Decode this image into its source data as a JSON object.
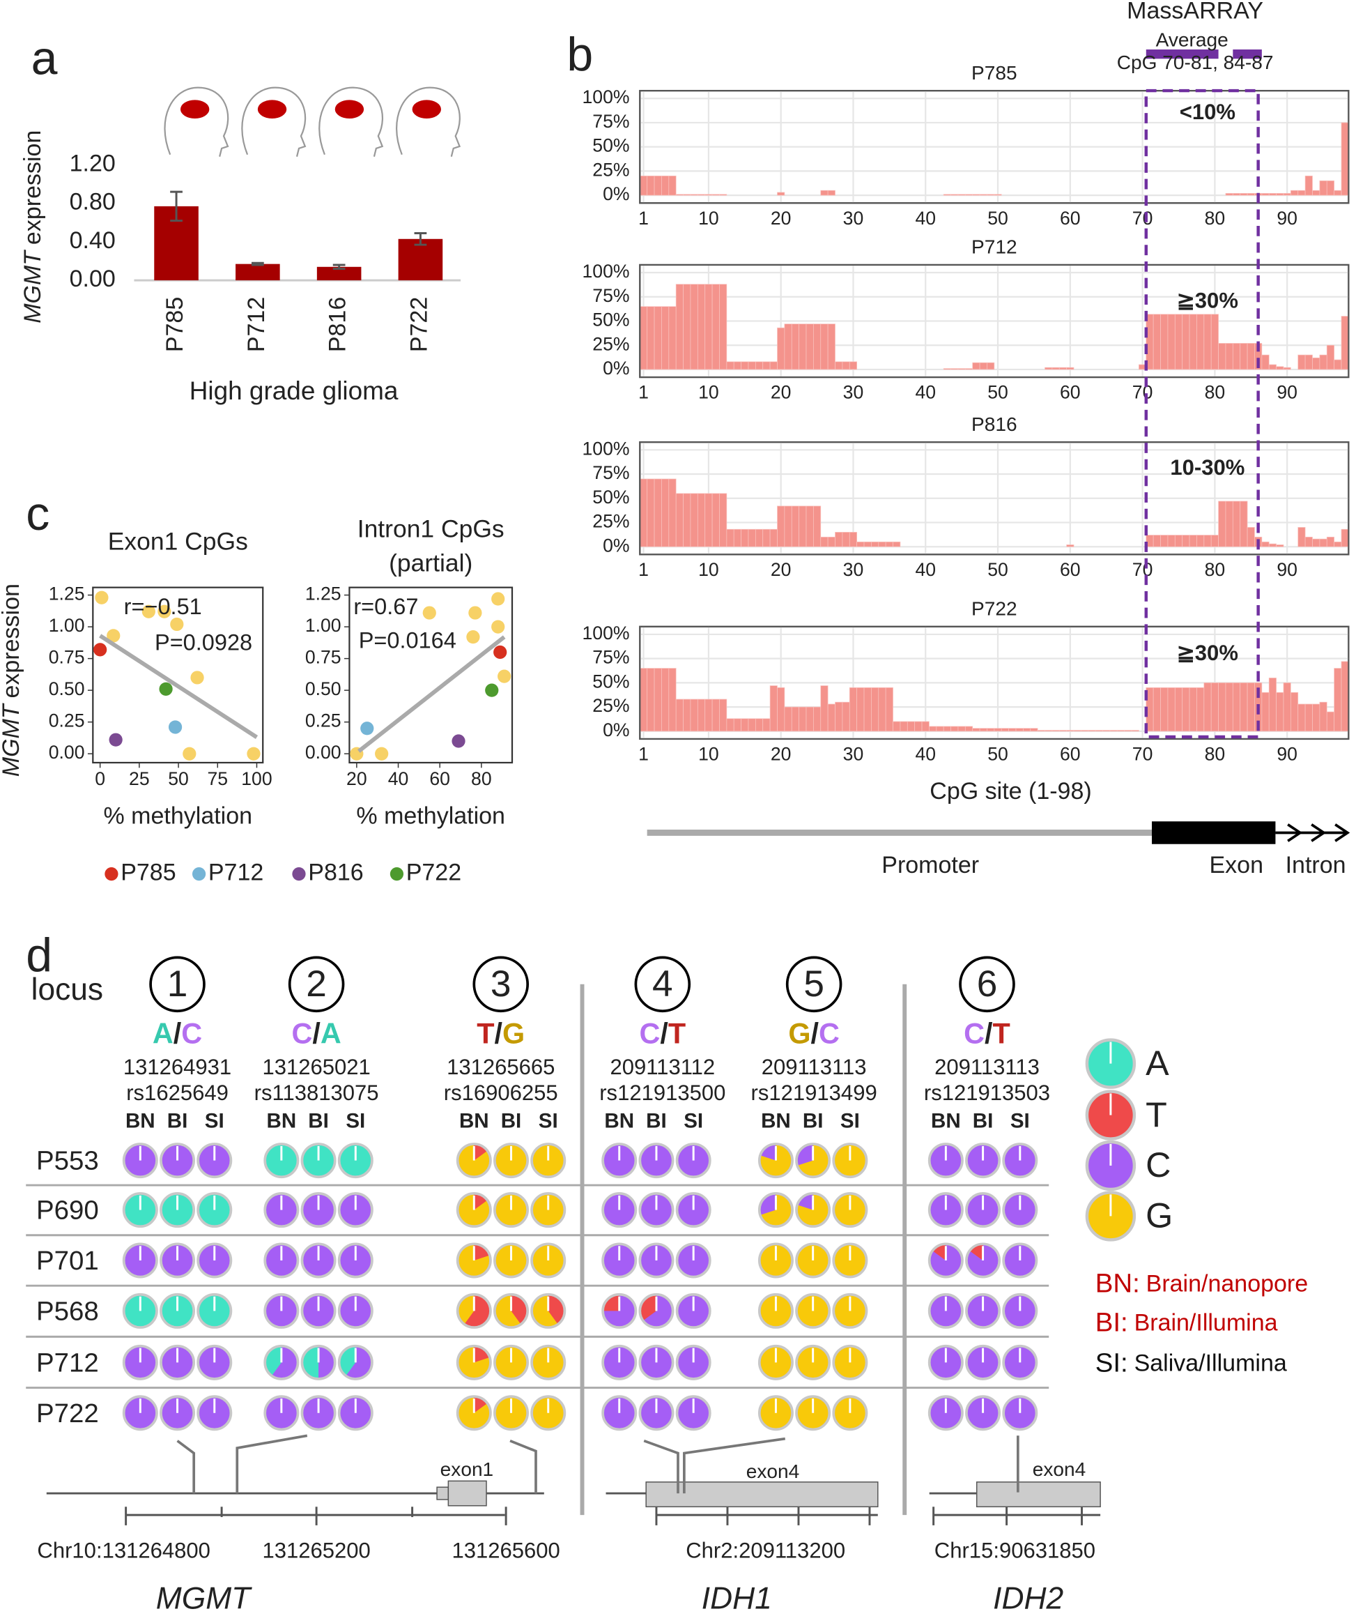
{
  "panel_labels": [
    "a",
    "b",
    "c",
    "d"
  ],
  "chart_data": [
    {
      "type": "bar",
      "ylabel_italic": "MGMT",
      "ylabel": "expression",
      "xlabel": "High grade glioma",
      "categories": [
        "P785",
        "P712",
        "P816",
        "P722"
      ],
      "values": [
        0.77,
        0.17,
        0.14,
        0.43
      ],
      "errors": [
        0.15,
        0.01,
        0.02,
        0.06
      ],
      "color": "#a50000",
      "ylim": [
        0,
        1.2
      ],
      "yticks": [
        {
          "value": 0,
          "label": "0.00"
        },
        {
          "value": 0.4,
          "label": "0.40"
        },
        {
          "value": 0.8,
          "label": "0.80"
        },
        {
          "value": 1.2,
          "label": "1.20"
        }
      ]
    },
    {
      "type": "facet_bar",
      "xlabel": "CpG site (1-98)",
      "color": "#f4938c",
      "x": [
        1,
        2,
        3,
        4,
        5,
        6,
        7,
        8,
        9,
        10,
        11,
        12,
        13,
        14,
        15,
        16,
        17,
        18,
        19,
        20,
        21,
        22,
        23,
        24,
        25,
        26,
        27,
        28,
        29,
        30,
        31,
        32,
        33,
        34,
        35,
        36,
        37,
        38,
        39,
        40,
        41,
        42,
        43,
        44,
        45,
        46,
        47,
        48,
        49,
        50,
        51,
        52,
        53,
        54,
        55,
        56,
        57,
        58,
        59,
        60,
        61,
        62,
        63,
        64,
        65,
        66,
        67,
        68,
        69,
        70,
        71,
        72,
        73,
        74,
        75,
        76,
        77,
        78,
        79,
        80,
        81,
        82,
        83,
        84,
        85,
        86,
        87,
        88,
        89,
        90,
        91,
        92,
        93,
        94,
        95,
        96,
        97,
        98
      ],
      "xlim": [
        0.5,
        98.5
      ],
      "xticks": [
        1,
        10,
        20,
        30,
        40,
        50,
        60,
        70,
        80,
        90
      ],
      "ylim": [
        -8,
        108
      ],
      "yticks": [
        {
          "value": 0,
          "label": "0%"
        },
        {
          "value": 25,
          "label": "25%"
        },
        {
          "value": 50,
          "label": "50%"
        },
        {
          "value": 75,
          "label": "75%"
        },
        {
          "value": 100,
          "label": "100%"
        }
      ],
      "grid": true,
      "series": [
        {
          "name": "P785",
          "annotation": "<10%",
          "values": [
            20,
            20,
            20,
            20,
            20,
            1,
            1,
            1,
            1,
            1,
            1,
            1,
            0,
            0,
            0,
            0,
            0,
            0,
            0,
            3,
            0,
            0,
            0,
            0,
            0,
            5,
            5,
            0,
            0,
            0,
            0,
            0,
            0,
            0,
            0,
            0,
            0,
            0,
            0,
            0,
            0,
            0,
            1,
            1,
            1,
            1,
            1,
            1,
            1,
            1,
            0,
            0,
            0,
            0,
            0,
            0,
            0,
            0,
            0,
            0,
            0,
            0,
            0,
            0,
            0,
            0,
            0,
            0,
            0,
            0,
            0,
            0,
            0,
            0,
            0,
            0,
            0,
            0,
            0,
            0,
            0,
            2,
            2,
            2,
            2,
            2,
            2,
            2,
            2,
            2,
            5,
            5,
            20,
            5,
            15,
            15,
            5,
            75
          ]
        },
        {
          "name": "P712",
          "annotation": "≧30%",
          "values": [
            65,
            65,
            65,
            65,
            65,
            88,
            88,
            88,
            88,
            88,
            88,
            88,
            8,
            8,
            8,
            8,
            8,
            8,
            8,
            43,
            47,
            47,
            47,
            47,
            47,
            47,
            47,
            8,
            8,
            8,
            0,
            0,
            0,
            0,
            0,
            0,
            0,
            0,
            0,
            0,
            0,
            0,
            1,
            1,
            1,
            1,
            7,
            7,
            7,
            0,
            0,
            0,
            0,
            0,
            0,
            0,
            2,
            2,
            2,
            2,
            0,
            0,
            0,
            0,
            0,
            0,
            0,
            0,
            0,
            5,
            57,
            57,
            57,
            57,
            57,
            57,
            57,
            57,
            57,
            57,
            27,
            27,
            27,
            27,
            27,
            27,
            15,
            5,
            3,
            2,
            0,
            15,
            15,
            12,
            15,
            25,
            10,
            55
          ]
        },
        {
          "name": "P816",
          "annotation": "10-30%",
          "values": [
            70,
            70,
            70,
            70,
            70,
            55,
            55,
            55,
            55,
            55,
            55,
            55,
            18,
            18,
            18,
            18,
            18,
            18,
            18,
            42,
            42,
            42,
            42,
            42,
            42,
            10,
            10,
            15,
            15,
            15,
            5,
            5,
            5,
            5,
            5,
            5,
            0,
            0,
            0,
            0,
            0,
            0,
            0,
            0,
            0,
            0,
            0,
            0,
            0,
            0,
            0,
            0,
            0,
            0,
            0,
            0,
            0,
            0,
            0,
            2,
            0,
            0,
            0,
            0,
            0,
            0,
            0,
            0,
            0,
            0,
            12,
            12,
            12,
            12,
            12,
            12,
            12,
            12,
            12,
            12,
            47,
            47,
            47,
            47,
            20,
            10,
            5,
            3,
            2,
            0,
            0,
            20,
            10,
            8,
            8,
            10,
            5,
            18
          ]
        },
        {
          "name": "P722",
          "annotation": "≧30%",
          "values": [
            65,
            65,
            65,
            65,
            65,
            33,
            33,
            33,
            33,
            33,
            33,
            33,
            13,
            13,
            13,
            13,
            13,
            13,
            47,
            45,
            25,
            25,
            25,
            25,
            25,
            47,
            28,
            30,
            30,
            45,
            45,
            45,
            45,
            45,
            45,
            10,
            10,
            10,
            10,
            10,
            5,
            5,
            5,
            5,
            5,
            5,
            3,
            3,
            3,
            3,
            3,
            3,
            3,
            3,
            3,
            1,
            1,
            1,
            1,
            1,
            1,
            1,
            1,
            1,
            1,
            1,
            1,
            1,
            1,
            0,
            45,
            45,
            45,
            45,
            45,
            45,
            45,
            45,
            50,
            50,
            50,
            50,
            50,
            50,
            50,
            50,
            40,
            55,
            40,
            50,
            40,
            28,
            28,
            28,
            30,
            20,
            65,
            72
          ]
        }
      ],
      "region": {
        "title": "MassARRAY",
        "subtitle": "Average",
        "label": "CpG 70-81, 84-87",
        "color": "#7030a0",
        "x": [
          70.5,
          86
        ],
        "bars": [
          [
            70.5,
            80.5
          ],
          [
            82.5,
            86.5
          ]
        ]
      },
      "gene_structure": [
        "Promoter",
        "Exon",
        "Intron"
      ]
    },
    {
      "type": "scatter",
      "title": "Exon1 CpGs",
      "ylabel_italic": "MGMT",
      "ylabel": "expression",
      "xlabel": "% methylation",
      "x": [
        1,
        8.5,
        31,
        41,
        49,
        62,
        57,
        98,
        0,
        42,
        48,
        10
      ],
      "values": [
        1.23,
        0.93,
        1.12,
        1.12,
        1.02,
        0.6,
        0,
        0,
        0.82,
        0.51,
        0.21,
        0.11
      ],
      "colors": [
        "#f7d166",
        "#f7d166",
        "#f7d166",
        "#f7d166",
        "#f7d166",
        "#f7d166",
        "#f7d166",
        "#f7d166",
        "#d7301f",
        "#4d9a2e",
        "#74b4d6",
        "#7b4a92"
      ],
      "fit": {
        "x": [
          0,
          100
        ],
        "values": [
          0.93,
          0.13
        ]
      },
      "annotations": [
        "r=−0.51",
        "P=0.0928"
      ],
      "xlim": [
        -4.6,
        103.9
      ],
      "xticks": [
        0,
        25,
        50,
        75,
        100
      ],
      "ylim": [
        -0.07,
        1.31
      ],
      "yticks": [
        {
          "value": 0,
          "label": "0.00"
        },
        {
          "value": 0.25,
          "label": "0.25"
        },
        {
          "value": 0.5,
          "label": "0.50"
        },
        {
          "value": 0.75,
          "label": "0.75"
        },
        {
          "value": 1,
          "label": "1.00"
        },
        {
          "value": 1.25,
          "label": "1.25"
        }
      ],
      "legend": [
        {
          "name": "P785",
          "color": "#d7301f"
        },
        {
          "name": "P712",
          "color": "#74b4d6"
        },
        {
          "name": "P816",
          "color": "#7b4a92"
        },
        {
          "name": "P722",
          "color": "#4d9a2e"
        }
      ]
    },
    {
      "type": "scatter",
      "title": "Intron1 CpGs",
      "subtitle": "(partial)",
      "xlabel": "% methylation",
      "x": [
        55,
        77,
        88,
        88,
        76,
        91,
        20,
        32,
        89,
        85,
        25,
        69
      ],
      "values": [
        1.11,
        1.11,
        1.22,
        1.0,
        0.92,
        0.61,
        0,
        0,
        0.8,
        0.5,
        0.2,
        0.1
      ],
      "colors": [
        "#f7d166",
        "#f7d166",
        "#f7d166",
        "#f7d166",
        "#f7d166",
        "#f7d166",
        "#f7d166",
        "#f7d166",
        "#d7301f",
        "#4d9a2e",
        "#74b4d6",
        "#7b4a92"
      ],
      "fit": {
        "x": [
          21,
          91
        ],
        "values": [
          0.02,
          0.92
        ]
      },
      "annotations": [
        "r=0.67",
        "P=0.0164"
      ],
      "xlim": [
        16.5,
        94.8
      ],
      "xticks": [
        20,
        40,
        60,
        80
      ],
      "ylim": [
        -0.07,
        1.31
      ],
      "yticks": [
        {
          "value": 0,
          "label": "0.00"
        },
        {
          "value": 0.25,
          "label": "0.25"
        },
        {
          "value": 0.5,
          "label": "0.50"
        },
        {
          "value": 0.75,
          "label": "0.75"
        },
        {
          "value": 1,
          "label": "1.00"
        },
        {
          "value": 1.25,
          "label": "1.25"
        }
      ]
    }
  ],
  "panel_d": {
    "locus_label": "locus",
    "separator": "/",
    "columns": [
      "BN",
      "BI",
      "SI"
    ],
    "base_colors": {
      "A": "#40e3c4",
      "T": "#ef4a4a",
      "C": "#a55ef5",
      "G": "#f8c90a"
    },
    "base_text_colors": {
      "A": "#36c9ae",
      "T": "#c0251f",
      "C": "#b46ff0",
      "G": "#c49a00"
    },
    "samples": [
      "P553",
      "P690",
      "P701",
      "P568",
      "P712",
      "P722"
    ],
    "loci": [
      {
        "number": 1,
        "alleles": [
          "A",
          "C"
        ],
        "position": "131264931",
        "rsid": "rs1625649",
        "values": [
          [
            0,
            0,
            0
          ],
          [
            1,
            1,
            1
          ],
          [
            0,
            0,
            0
          ],
          [
            1,
            1,
            1
          ],
          [
            0,
            0,
            0
          ],
          [
            0,
            0,
            0
          ]
        ]
      },
      {
        "number": 2,
        "alleles": [
          "C",
          "A"
        ],
        "position": "131265021",
        "rsid": "rs113813075",
        "values": [
          [
            0,
            0,
            0
          ],
          [
            1,
            1,
            1
          ],
          [
            1,
            1,
            1
          ],
          [
            1,
            1,
            1
          ],
          [
            0.6,
            0.5,
            0.6
          ],
          [
            1,
            1,
            1
          ]
        ]
      },
      {
        "number": 3,
        "alleles": [
          "T",
          "G"
        ],
        "position": "131265665",
        "rsid": "rs16906255",
        "values": [
          [
            0.15,
            0,
            0
          ],
          [
            0.15,
            0,
            0
          ],
          [
            0.2,
            0,
            0
          ],
          [
            0.6,
            0.4,
            0.4
          ],
          [
            0.2,
            0,
            0
          ],
          [
            0.15,
            0,
            0
          ]
        ]
      },
      {
        "number": 4,
        "alleles": [
          "C",
          "T"
        ],
        "position": "209113112",
        "rsid": "rs121913500",
        "values": [
          [
            1,
            1,
            1
          ],
          [
            1,
            1,
            1
          ],
          [
            1,
            1,
            1
          ],
          [
            0.75,
            0.65,
            1
          ],
          [
            1,
            1,
            1
          ],
          [
            1,
            1,
            1
          ]
        ]
      },
      {
        "number": 5,
        "alleles": [
          "G",
          "C"
        ],
        "position": "209113113",
        "rsid": "rs121913499",
        "values": [
          [
            0.8,
            0.7,
            1
          ],
          [
            0.7,
            0.8,
            1
          ],
          [
            1,
            1,
            1
          ],
          [
            1,
            1,
            1
          ],
          [
            1,
            1,
            1
          ],
          [
            1,
            1,
            1
          ]
        ]
      },
      {
        "number": 6,
        "alleles": [
          "C",
          "T"
        ],
        "position": "209113113",
        "rsid": "rs121913503",
        "values": [
          [
            1,
            1,
            1
          ],
          [
            1,
            1,
            1
          ],
          [
            0.85,
            0.85,
            1
          ],
          [
            1,
            1,
            1
          ],
          [
            1,
            1,
            1
          ],
          [
            1,
            1,
            1
          ]
        ]
      }
    ],
    "legend": {
      "bases": [
        "A",
        "T",
        "C",
        "G"
      ],
      "keys": [
        {
          "key": "BN:",
          "text": "Brain/nanopore",
          "color": "#c00000"
        },
        {
          "key": "BI:",
          "text": "Brain/Illumina",
          "color": "#c00000"
        },
        {
          "key": "SI:",
          "text": "Saliva/Illumina",
          "color": "#111111"
        }
      ]
    },
    "tracks": [
      {
        "ticks": [
          "Chr10:131264800",
          "131265200",
          "131265600"
        ],
        "exon": "exon1",
        "gene": "MGMT"
      },
      {
        "ticks": [
          "Chr2:209113200"
        ],
        "exon": "exon4",
        "gene": "IDH1"
      },
      {
        "ticks": [
          "Chr15:90631850"
        ],
        "exon": "exon4",
        "gene": "IDH2"
      }
    ]
  }
}
